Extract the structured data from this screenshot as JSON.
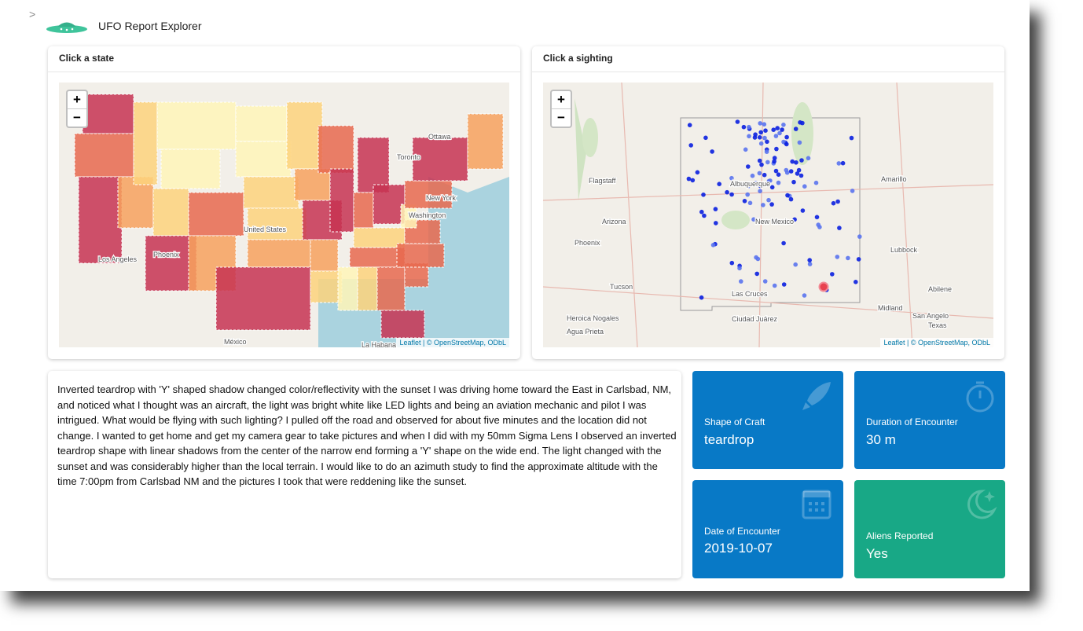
{
  "header": {
    "toggle": ">",
    "title": "UFO Report Explorer"
  },
  "state_map": {
    "title": "Click a state",
    "zoom_in": "+",
    "zoom_out": "−",
    "attribution": "Leaflet | © OpenStreetMap, ODbL",
    "labels": [
      "Ottawa",
      "Toronto",
      "New York",
      "Washington",
      "United States",
      "Phoenix",
      "Los Angeles",
      "México",
      "La Habana"
    ]
  },
  "sighting_map": {
    "title": "Click a sighting",
    "zoom_in": "+",
    "zoom_out": "−",
    "attribution": "Leaflet | © OpenStreetMap, ODbL",
    "labels": [
      "Flagstaff",
      "Albuquerque",
      "Amarillo",
      "Arizona",
      "New Mexico",
      "Phoenix",
      "Lubbock",
      "Tucson",
      "Las Cruces",
      "Abilene",
      "Midland",
      "San Angelo",
      "Texas",
      "Heroica Nogales",
      "Agua Prieta",
      "Ciudad Juárez"
    ]
  },
  "description": "Inverted teardrop with 'Y' shaped shadow changed color/reflectivity with the sunset I was driving home toward the East in Carlsbad, NM, and noticed what I thought was an aircraft, the light was bright white like LED lights and being an aviation mechanic and pilot I was intrigued. What would be flying with such lighting? I pulled off the road and observed for about five minutes and the location did not change. I wanted to get home and get my camera gear to take pictures and when I did with my 50mm Sigma Lens I observed an inverted teardrop shape with linear shadows from the center of the narrow end forming a 'Y' shape on the wide end. The light changed with the sunset and was considerably higher than the local terrain. I would like to do an azimuth study to find the approximate altitude with the time 7:00pm from Carlsbad NM and the pictures I took that were reddening like the sunset.",
  "value_boxes": [
    {
      "label": "Shape of Craft",
      "value": "teardrop"
    },
    {
      "label": "Duration of Encounter",
      "value": "30 m"
    },
    {
      "label": "Date of Encounter",
      "value": "2019-10-07"
    },
    {
      "label": "Aliens Reported",
      "value": "Yes"
    }
  ]
}
